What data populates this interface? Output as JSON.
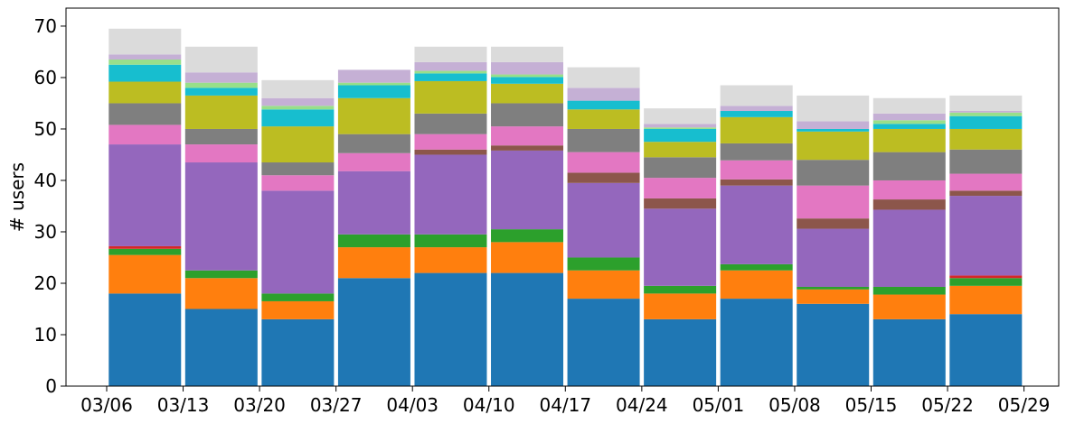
{
  "chart_data": {
    "type": "bar",
    "stacked": true,
    "ylabel": "# users",
    "xlabel": "",
    "title": "",
    "ylim": [
      0,
      73.5
    ],
    "yticks": [
      0,
      10,
      20,
      30,
      40,
      50,
      60,
      70
    ],
    "xtick_labels": [
      "03/06",
      "03/13",
      "03/20",
      "03/27",
      "04/03",
      "04/10",
      "04/17",
      "04/24",
      "05/01",
      "05/08",
      "05/15",
      "05/22",
      "05/29"
    ],
    "grid": false,
    "legend": "none",
    "categories": [
      "03/06",
      "03/13",
      "03/20",
      "03/27",
      "04/03",
      "04/10",
      "04/17",
      "04/24",
      "05/01",
      "05/08",
      "05/15",
      "05/22"
    ],
    "series": [
      {
        "color": "#1f77b4",
        "values": [
          18,
          15,
          13,
          21,
          22,
          22,
          17,
          13,
          17,
          16,
          13,
          14
        ]
      },
      {
        "color": "#ff7f0e",
        "values": [
          7.5,
          6,
          3.5,
          6,
          5,
          6,
          5.5,
          5,
          5.5,
          2.8,
          4.8,
          5.5
        ]
      },
      {
        "color": "#2ca02c",
        "values": [
          1.2,
          1.5,
          1.5,
          2.5,
          2.5,
          2.5,
          2.5,
          1.5,
          1.2,
          0.5,
          1.5,
          1.5
        ]
      },
      {
        "color": "#d62728",
        "values": [
          0.5,
          0,
          0,
          0,
          0,
          0,
          0,
          0,
          0,
          0,
          0,
          0.5
        ]
      },
      {
        "color": "#9467bd",
        "values": [
          19.8,
          21,
          20,
          12.3,
          15.5,
          15.3,
          14.5,
          15,
          15.3,
          11.3,
          15,
          15.5
        ]
      },
      {
        "color": "#8c564b",
        "values": [
          0,
          0,
          0,
          0,
          1,
          1,
          2,
          2,
          1.2,
          2,
          2,
          1
        ]
      },
      {
        "color": "#e377c2",
        "values": [
          3.8,
          3.5,
          3,
          3.5,
          3,
          3.7,
          4,
          4,
          3.7,
          6.4,
          3.7,
          3.3
        ]
      },
      {
        "color": "#7f7f7f",
        "values": [
          4.2,
          3,
          2.5,
          3.7,
          4,
          4.5,
          4.5,
          4,
          3.3,
          5,
          5.5,
          4.7
        ]
      },
      {
        "color": "#bcbd22",
        "values": [
          4.2,
          6.5,
          7,
          7,
          6.3,
          3.8,
          3.8,
          3,
          5.1,
          5.5,
          4.5,
          4
        ]
      },
      {
        "color": "#17becf",
        "values": [
          3.3,
          1.5,
          3.3,
          2.5,
          1.5,
          1.3,
          1.7,
          2.5,
          1.2,
          0.5,
          1,
          2.5
        ]
      },
      {
        "color": "#98df8a",
        "values": [
          1,
          1,
          0.7,
          0.5,
          0.5,
          0.5,
          0,
          0.3,
          0,
          0,
          0.7,
          0.7
        ]
      },
      {
        "color": "#c5b0d5",
        "values": [
          1,
          2,
          1.5,
          2.5,
          1.7,
          2.4,
          2.5,
          0.7,
          1,
          1.5,
          1.3,
          0.3
        ]
      },
      {
        "color": "#dbdbdb",
        "values": [
          5,
          5,
          3.5,
          0,
          3,
          3,
          4,
          3,
          4,
          5,
          3,
          3
        ]
      }
    ]
  }
}
